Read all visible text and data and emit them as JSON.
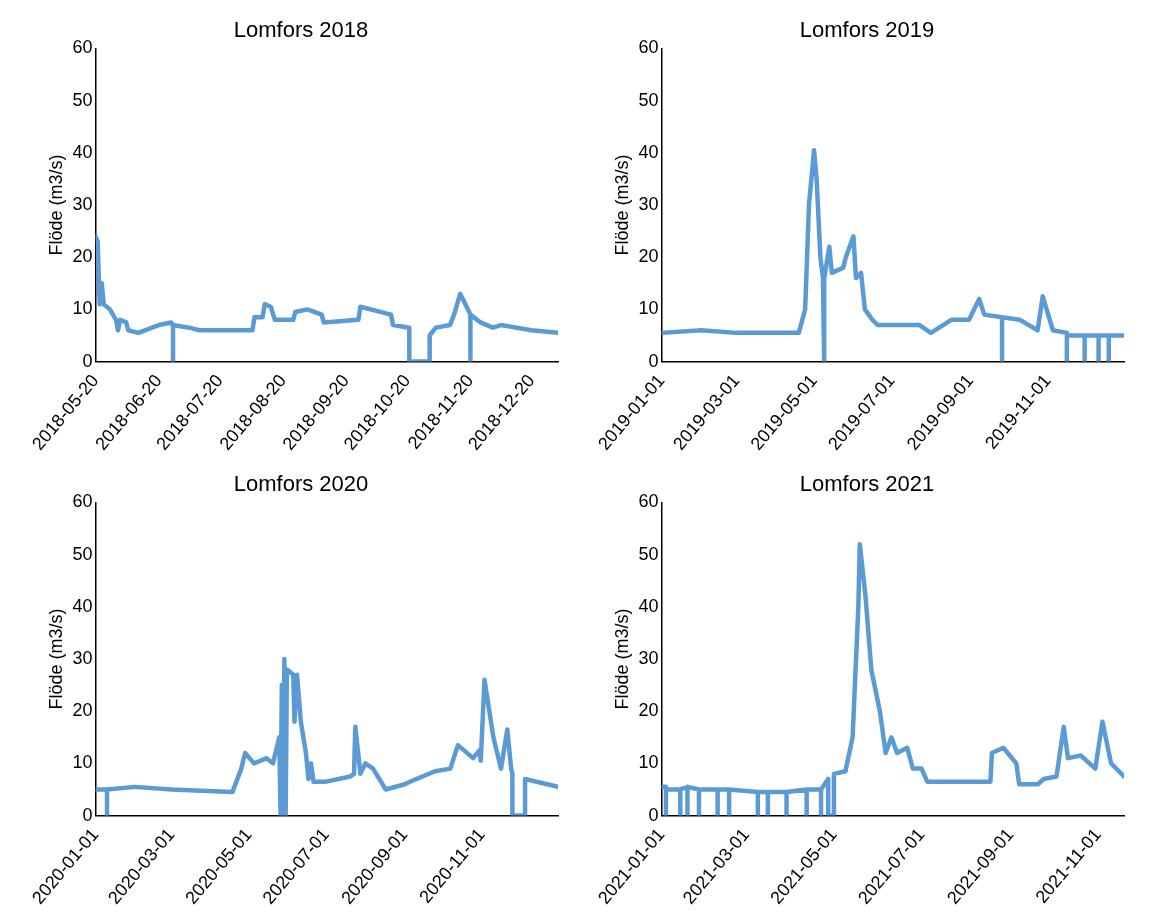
{
  "chart_data": [
    {
      "type": "line",
      "title": "Lomfors 2018",
      "ylabel": "Flöde (m3/s)",
      "color": "#5b9bd5",
      "x": [
        "2018-05-20",
        "2018-05-21",
        "2018-05-22",
        "2018-05-23",
        "2018-05-24",
        "2018-05-27",
        "2018-05-30",
        "2018-05-31",
        "2018-06-01",
        "2018-06-04",
        "2018-06-05",
        "2018-06-10",
        "2018-06-20",
        "2018-06-26",
        "2018-06-27",
        "2018-06-27",
        "2018-06-27",
        "2018-07-05",
        "2018-07-10",
        "2018-08-05",
        "2018-08-06",
        "2018-08-10",
        "2018-08-11",
        "2018-08-14",
        "2018-08-16",
        "2018-08-25",
        "2018-08-26",
        "2018-09-01",
        "2018-09-08",
        "2018-09-09",
        "2018-09-26",
        "2018-09-27",
        "2018-10-12",
        "2018-10-13",
        "2018-10-21",
        "2018-10-21",
        "2018-10-31",
        "2018-10-31",
        "2018-11-03",
        "2018-11-10",
        "2018-11-12",
        "2018-11-15",
        "2018-11-20",
        "2018-11-20",
        "2018-11-20",
        "2018-11-25",
        "2018-12-01",
        "2018-12-05",
        "2018-12-20",
        "2019-01-02"
      ],
      "values": [
        24,
        23,
        11,
        15,
        11,
        10,
        8,
        6,
        8,
        7.5,
        6,
        5.5,
        7,
        7.5,
        7,
        0,
        7,
        6.5,
        6,
        6,
        8.5,
        8.5,
        11,
        10.5,
        8,
        8,
        9.5,
        10,
        9,
        7.5,
        8,
        10.5,
        9,
        7,
        6.5,
        0,
        0,
        5,
        6.5,
        7,
        9,
        13,
        9,
        0,
        9,
        7.5,
        6.5,
        7,
        6,
        5.5
      ],
      "xlim": [
        "2018-05-20",
        "2019-01-02"
      ],
      "xticks": [
        "2018-05-20",
        "2018-06-20",
        "2018-07-20",
        "2018-08-20",
        "2018-09-20",
        "2018-10-20",
        "2018-11-20",
        "2018-12-20"
      ],
      "ylim": [
        0,
        60
      ],
      "yticks": [
        0,
        10,
        20,
        30,
        40,
        50,
        60
      ]
    },
    {
      "type": "line",
      "title": "Lomfors 2019",
      "ylabel": "Flöde (m3/s)",
      "color": "#5b9bd5",
      "x": [
        "2019-01-01",
        "2019-02-01",
        "2019-03-01",
        "2019-04-01",
        "2019-04-19",
        "2019-04-24",
        "2019-04-27",
        "2019-05-01",
        "2019-05-03",
        "2019-05-06",
        "2019-05-08",
        "2019-05-09",
        "2019-05-09",
        "2019-05-13",
        "2019-05-15",
        "2019-05-24",
        "2019-05-26",
        "2019-06-01",
        "2019-06-03",
        "2019-06-07",
        "2019-06-10",
        "2019-06-16",
        "2019-06-20",
        "2019-07-01",
        "2019-07-23",
        "2019-08-01",
        "2019-08-17",
        "2019-08-31",
        "2019-09-08",
        "2019-09-12",
        "2019-09-26",
        "2019-09-26",
        "2019-09-26",
        "2019-10-10",
        "2019-10-24",
        "2019-10-28",
        "2019-11-05",
        "2019-11-16",
        "2019-11-16",
        "2019-11-16",
        "2019-11-30",
        "2019-11-30",
        "2019-11-30",
        "2019-12-11",
        "2019-12-11",
        "2019-12-11",
        "2019-12-19",
        "2019-12-19",
        "2019-12-19",
        "2019-12-31"
      ],
      "values": [
        5.5,
        6,
        5.5,
        5.5,
        5.5,
        10,
        30,
        40.5,
        35,
        20,
        16,
        0,
        16,
        22,
        17,
        18,
        20,
        24,
        16,
        17,
        10,
        8,
        7,
        7,
        7,
        5.5,
        8,
        8,
        12,
        9,
        8.5,
        0,
        8.5,
        8,
        6,
        12.5,
        6,
        5.5,
        0,
        5,
        5,
        0,
        5,
        5,
        0,
        5,
        5,
        0,
        5,
        5
      ],
      "xlim": [
        "2019-01-01",
        "2019-12-31"
      ],
      "xticks": [
        "2019-01-01",
        "2019-03-01",
        "2019-05-01",
        "2019-07-01",
        "2019-09-01",
        "2019-11-01"
      ],
      "ylim": [
        0,
        60
      ],
      "yticks": [
        0,
        10,
        20,
        30,
        40,
        50,
        60
      ]
    },
    {
      "type": "line",
      "title": "Lomfors 2020",
      "ylabel": "Flöde (m3/s)",
      "color": "#5b9bd5",
      "x": [
        "2020-01-01",
        "2020-01-10",
        "2020-01-10",
        "2020-01-10",
        "2020-02-01",
        "2020-03-01",
        "2020-04-18",
        "2020-04-25",
        "2020-04-28",
        "2020-05-05",
        "2020-05-15",
        "2020-05-20",
        "2020-05-25",
        "2020-05-26",
        "2020-05-27",
        "2020-05-28",
        "2020-05-29",
        "2020-05-30",
        "2020-05-31",
        "2020-06-05",
        "2020-06-06",
        "2020-06-08",
        "2020-06-11",
        "2020-06-15",
        "2020-06-17",
        "2020-06-19",
        "2020-06-21",
        "2020-07-01",
        "2020-07-20",
        "2020-07-23",
        "2020-07-24",
        "2020-07-28",
        "2020-08-01",
        "2020-08-07",
        "2020-08-17",
        "2020-09-01",
        "2020-09-10",
        "2020-09-25",
        "2020-10-07",
        "2020-10-13",
        "2020-10-25",
        "2020-10-30",
        "2020-10-31",
        "2020-11-03",
        "2020-11-10",
        "2020-11-16",
        "2020-11-21",
        "2020-11-24",
        "2020-11-25",
        "2020-11-25",
        "2020-12-05",
        "2020-12-05",
        "2020-12-31"
      ],
      "values": [
        5,
        5,
        0,
        5,
        5.5,
        5,
        4.5,
        9,
        12,
        10,
        11,
        10,
        15,
        0,
        25,
        0,
        30,
        0,
        28,
        27,
        18,
        27,
        18,
        12,
        7,
        10,
        6.5,
        6.5,
        7.5,
        8,
        17,
        8,
        10,
        9,
        5,
        6,
        7,
        8.5,
        9,
        13.5,
        11,
        12.5,
        10.5,
        26,
        15,
        9,
        16.5,
        9,
        8,
        0,
        0,
        7,
        5.5
      ],
      "xlim": [
        "2020-01-01",
        "2020-12-31"
      ],
      "xticks": [
        "2020-01-01",
        "2020-03-01",
        "2020-05-01",
        "2020-07-01",
        "2020-09-01",
        "2020-11-01"
      ],
      "ylim": [
        0,
        60
      ],
      "yticks": [
        0,
        10,
        20,
        30,
        40,
        50,
        60
      ]
    },
    {
      "type": "line",
      "title": "Lomfors 2021",
      "ylabel": "Flöde (m3/s)",
      "color": "#5b9bd5",
      "x": [
        "2021-01-01",
        "2021-01-04",
        "2021-01-04",
        "2021-01-04",
        "2021-01-14",
        "2021-01-14",
        "2021-01-14",
        "2021-01-19",
        "2021-01-19",
        "2021-01-19",
        "2021-01-27",
        "2021-01-27",
        "2021-01-27",
        "2021-02-09",
        "2021-02-09",
        "2021-02-09",
        "2021-02-17",
        "2021-02-17",
        "2021-02-17",
        "2021-03-09",
        "2021-03-09",
        "2021-03-09",
        "2021-03-16",
        "2021-03-16",
        "2021-03-16",
        "2021-03-29",
        "2021-03-29",
        "2021-03-29",
        "2021-04-12",
        "2021-04-12",
        "2021-04-12",
        "2021-04-22",
        "2021-04-22",
        "2021-04-22",
        "2021-04-27",
        "2021-04-27",
        "2021-05-01",
        "2021-05-01",
        "2021-05-09",
        "2021-05-14",
        "2021-05-18",
        "2021-05-19",
        "2021-05-23",
        "2021-05-27",
        "2021-06-02",
        "2021-06-06",
        "2021-06-10",
        "2021-06-14",
        "2021-06-21",
        "2021-06-25",
        "2021-07-01",
        "2021-07-05",
        "2021-08-01",
        "2021-08-18",
        "2021-08-19",
        "2021-08-27",
        "2021-09-05",
        "2021-09-07",
        "2021-09-20",
        "2021-09-24",
        "2021-10-03",
        "2021-10-08",
        "2021-10-11",
        "2021-10-20",
        "2021-10-30",
        "2021-11-04",
        "2021-11-10",
        "2021-11-19"
      ],
      "values": [
        5.5,
        5.5,
        0,
        5,
        5,
        0,
        5,
        5.5,
        0,
        5.5,
        5,
        0,
        5,
        5,
        0,
        5,
        5,
        0,
        5,
        4.5,
        0,
        4.5,
        4.5,
        0,
        4.5,
        4.5,
        0,
        4.5,
        5,
        0,
        5,
        5,
        0,
        5,
        7,
        0,
        0,
        8,
        8.5,
        15,
        40,
        52,
        42,
        28,
        20,
        12,
        15,
        12,
        13,
        9,
        9,
        6.5,
        6.5,
        6.5,
        12,
        13,
        10,
        6,
        6,
        7,
        7.5,
        17,
        11,
        11.5,
        9,
        18,
        10,
        7.5
      ],
      "xlim": [
        "2021-01-01",
        "2021-11-19"
      ],
      "xticks": [
        "2021-01-01",
        "2021-03-01",
        "2021-05-01",
        "2021-07-01",
        "2021-09-01",
        "2021-11-01"
      ],
      "ylim": [
        0,
        60
      ],
      "yticks": [
        0,
        10,
        20,
        30,
        40,
        50,
        60
      ]
    }
  ]
}
